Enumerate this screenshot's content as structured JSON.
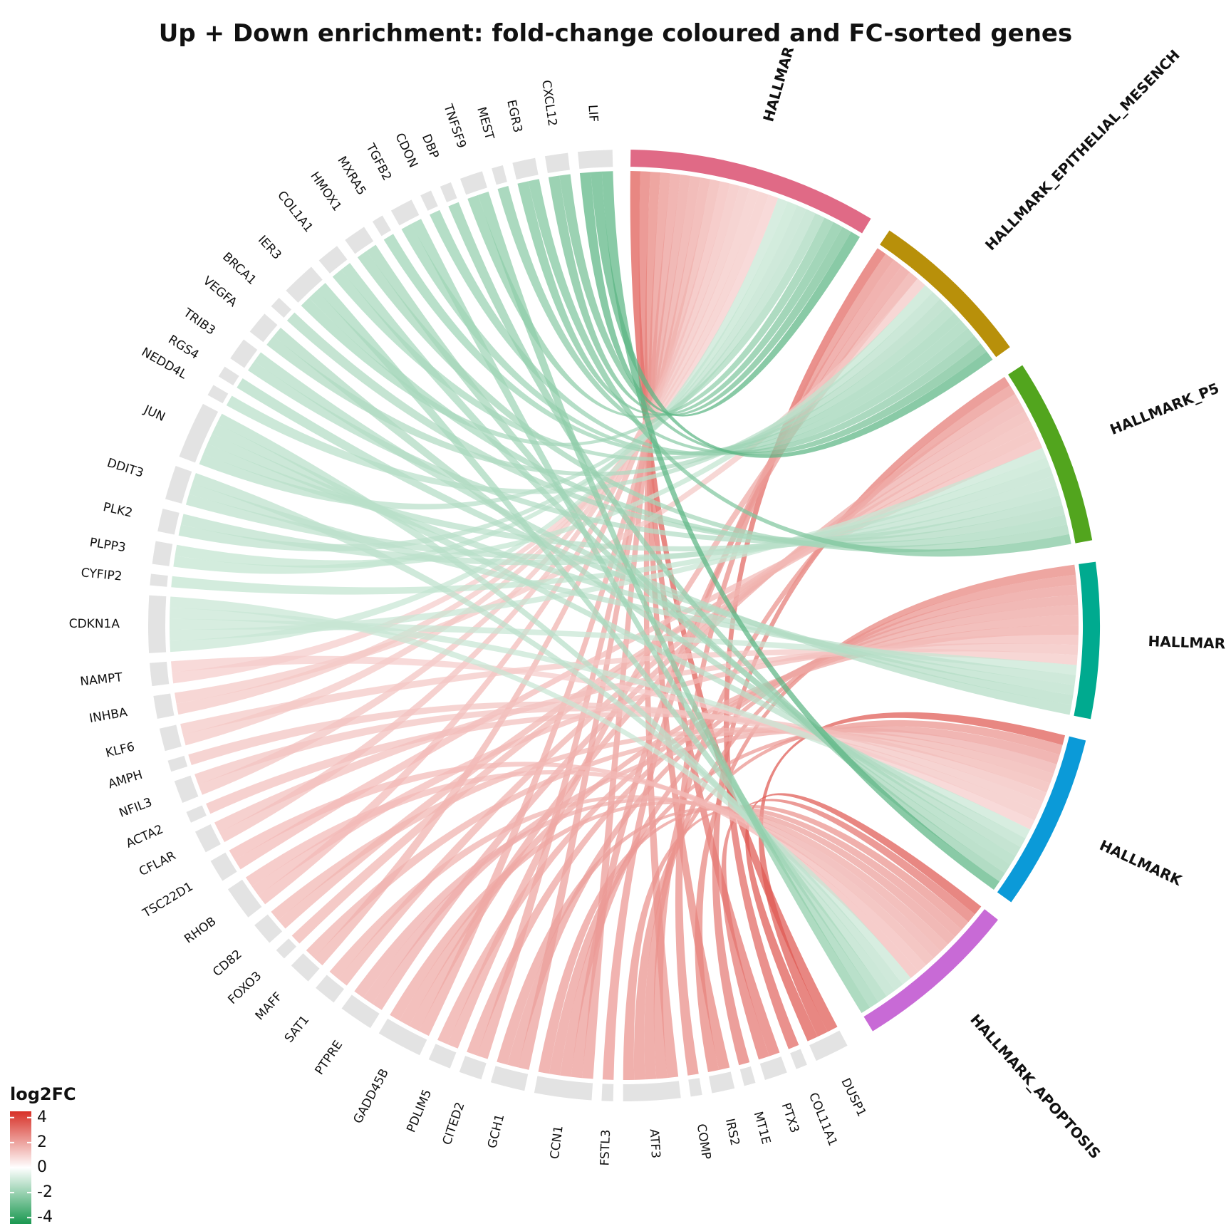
{
  "chart_data": {
    "type": "chord",
    "title": "Up + Down enrichment: fold-change coloured and FC-sorted genes",
    "legend": {
      "title": "log2FC",
      "ticks": [
        "4",
        "2",
        "0",
        "-2",
        "-4"
      ],
      "tick_values": [
        4,
        2,
        0,
        -2,
        -4
      ],
      "range": [
        -4.5,
        4.5
      ],
      "low_color": "#1a9850",
      "mid_color": "#ffffff",
      "high_color": "#d73027",
      "placement": "bottom-left"
    },
    "pathways": [
      {
        "name": "HALLMAR",
        "color": "#e06a86"
      },
      {
        "name": "HALLMARK_EPITHELIAL_MESENCH",
        "color": "#b8900a"
      },
      {
        "name": "HALLMARK_P5",
        "color": "#52a51e"
      },
      {
        "name": "HALLMAR",
        "color": "#00aa8f"
      },
      {
        "name": "HALLMARK",
        "color": "#0b9ad8"
      },
      {
        "name": "HALLMARK_APOPTOSIS",
        "color": "#c86ad6"
      }
    ],
    "genes": [
      {
        "name": "DUSP1",
        "log2fc": 3.6,
        "pathways": [
          0,
          4,
          5
        ]
      },
      {
        "name": "COL11A1",
        "log2fc": 3.3,
        "pathways": [
          1
        ]
      },
      {
        "name": "PTX3",
        "log2fc": 3.0,
        "pathways": [
          0,
          5
        ]
      },
      {
        "name": "MT1E",
        "log2fc": 2.9,
        "pathways": [
          2
        ]
      },
      {
        "name": "IRS2",
        "log2fc": 2.7,
        "pathways": [
          0,
          3
        ]
      },
      {
        "name": "COMP",
        "log2fc": 2.5,
        "pathways": [
          1
        ]
      },
      {
        "name": "ATF3",
        "log2fc": 2.4,
        "pathways": [
          0,
          2,
          3,
          4,
          5
        ]
      },
      {
        "name": "FSTL3",
        "log2fc": 2.3,
        "pathways": [
          1
        ]
      },
      {
        "name": "CCN1",
        "log2fc": 2.2,
        "pathways": [
          0,
          1,
          3,
          4,
          5
        ]
      },
      {
        "name": "GCH1",
        "log2fc": 2.1,
        "pathways": [
          0,
          3,
          5
        ]
      },
      {
        "name": "CITED2",
        "log2fc": 2.0,
        "pathways": [
          0,
          3
        ]
      },
      {
        "name": "PDLIM5",
        "log2fc": 1.9,
        "pathways": [
          1,
          3
        ]
      },
      {
        "name": "GADD45B",
        "log2fc": 1.9,
        "pathways": [
          0,
          2,
          3,
          5
        ]
      },
      {
        "name": "PTPRE",
        "log2fc": 1.8,
        "pathways": [
          2,
          4,
          5
        ]
      },
      {
        "name": "SAT1",
        "log2fc": 1.7,
        "pathways": [
          2,
          5
        ]
      },
      {
        "name": "MAFF",
        "log2fc": 1.7,
        "pathways": [
          0,
          4
        ]
      },
      {
        "name": "FOXO3",
        "log2fc": 1.6,
        "pathways": [
          2
        ]
      },
      {
        "name": "CD82",
        "log2fc": 1.6,
        "pathways": [
          2,
          4
        ]
      },
      {
        "name": "RHOB",
        "log2fc": 1.5,
        "pathways": [
          0,
          3,
          5
        ]
      },
      {
        "name": "TSC22D1",
        "log2fc": 1.5,
        "pathways": [
          2,
          5
        ]
      },
      {
        "name": "CFLAR",
        "log2fc": 1.4,
        "pathways": [
          0,
          3
        ]
      },
      {
        "name": "ACTA2",
        "log2fc": 1.4,
        "pathways": [
          4
        ]
      },
      {
        "name": "NFIL3",
        "log2fc": 1.3,
        "pathways": [
          0,
          4
        ]
      },
      {
        "name": "AMPH",
        "log2fc": 1.3,
        "pathways": [
          4
        ]
      },
      {
        "name": "KLF6",
        "log2fc": 1.2,
        "pathways": [
          0,
          3
        ]
      },
      {
        "name": "INHBA",
        "log2fc": 1.2,
        "pathways": [
          0,
          1
        ]
      },
      {
        "name": "NAMPT",
        "log2fc": 1.1,
        "pathways": [
          0,
          4
        ]
      },
      {
        "name": "CDKN1A",
        "log2fc": -1.1,
        "pathways": [
          0,
          2,
          3,
          4,
          5
        ]
      },
      {
        "name": "CYFIP2",
        "log2fc": -1.2,
        "pathways": [
          2
        ]
      },
      {
        "name": "PLPP3",
        "log2fc": -1.2,
        "pathways": [
          0,
          1
        ]
      },
      {
        "name": "PLK2",
        "log2fc": -1.3,
        "pathways": [
          0,
          2
        ]
      },
      {
        "name": "DDIT3",
        "log2fc": -1.3,
        "pathways": [
          2,
          3,
          5
        ]
      },
      {
        "name": "JUN",
        "log2fc": -1.4,
        "pathways": [
          0,
          2,
          3,
          4,
          5
        ]
      },
      {
        "name": "NEDD4L",
        "log2fc": -1.4,
        "pathways": [
          1
        ]
      },
      {
        "name": "RGS4",
        "log2fc": -1.5,
        "pathways": [
          3
        ]
      },
      {
        "name": "TRIB3",
        "log2fc": -1.5,
        "pathways": [
          2,
          3
        ]
      },
      {
        "name": "VEGFA",
        "log2fc": -1.6,
        "pathways": [
          1,
          4
        ]
      },
      {
        "name": "BRCA1",
        "log2fc": -1.6,
        "pathways": [
          2
        ]
      },
      {
        "name": "IER3",
        "log2fc": -1.7,
        "pathways": [
          0,
          2,
          5
        ]
      },
      {
        "name": "COL1A1",
        "log2fc": -1.7,
        "pathways": [
          1,
          4
        ]
      },
      {
        "name": "HMOX1",
        "log2fc": -1.8,
        "pathways": [
          2,
          4
        ]
      },
      {
        "name": "MXRA5",
        "log2fc": -1.9,
        "pathways": [
          1
        ]
      },
      {
        "name": "TGFB2",
        "log2fc": -1.9,
        "pathways": [
          1,
          5
        ]
      },
      {
        "name": "CDON",
        "log2fc": -2.0,
        "pathways": [
          1
        ]
      },
      {
        "name": "DBP",
        "log2fc": -2.1,
        "pathways": [
          4
        ]
      },
      {
        "name": "TNFSF9",
        "log2fc": -2.2,
        "pathways": [
          0,
          5
        ]
      },
      {
        "name": "MEST",
        "log2fc": -2.3,
        "pathways": [
          1
        ]
      },
      {
        "name": "EGR3",
        "log2fc": -2.5,
        "pathways": [
          0,
          2
        ]
      },
      {
        "name": "CXCL12",
        "log2fc": -2.7,
        "pathways": [
          0,
          1
        ]
      },
      {
        "name": "LIF",
        "log2fc": -3.2,
        "pathways": [
          0,
          1,
          4
        ]
      }
    ]
  }
}
